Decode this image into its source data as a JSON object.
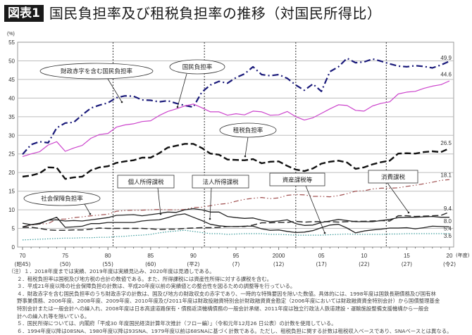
{
  "header": {
    "badge": "図表1",
    "title": "国民負担率及び租税負担率の推移（対国民所得比）"
  },
  "chart_data": {
    "type": "line",
    "title": "国民負担率及び租税負担率の推移（対国民所得比）",
    "ylabel": "(%)",
    "xlabel": "(年度)",
    "ylim": [
      0,
      55
    ],
    "yticks": [
      0,
      5,
      10,
      15,
      20,
      25,
      30,
      35,
      40,
      45,
      50,
      55
    ],
    "grid": true,
    "x": [
      1970,
      1971,
      1972,
      1973,
      1974,
      1975,
      1976,
      1977,
      1978,
      1979,
      1980,
      1981,
      1982,
      1983,
      1984,
      1985,
      1986,
      1987,
      1988,
      1989,
      1990,
      1991,
      1992,
      1993,
      1994,
      1995,
      1996,
      1997,
      1998,
      1999,
      2000,
      2001,
      2002,
      2003,
      2004,
      2005,
      2006,
      2007,
      2008,
      2009,
      2010,
      2011,
      2012,
      2013,
      2014,
      2015,
      2016,
      2017,
      2018,
      2019,
      2020
    ],
    "xtick_labels": [
      {
        "year": 1970,
        "label": "70",
        "sub": "(昭45)"
      },
      {
        "year": 1975,
        "label": "75",
        "sub": "(50)"
      },
      {
        "year": 1980,
        "label": "80",
        "sub": "(55)"
      },
      {
        "year": 1985,
        "label": "85",
        "sub": "(60)"
      },
      {
        "year": 1990,
        "label": "90",
        "sub": "(平2)"
      },
      {
        "year": 1995,
        "label": "95",
        "sub": "(7)"
      },
      {
        "year": 2000,
        "label": "2000",
        "sub": "(12)"
      },
      {
        "year": 2005,
        "label": "05",
        "sub": "(17)"
      },
      {
        "year": 2010,
        "label": "10",
        "sub": "(22)"
      },
      {
        "year": 2015,
        "label": "15",
        "sub": "(27)"
      },
      {
        "year": 2020,
        "label": "20",
        "sub": "(令2)"
      }
    ],
    "vlines": [
      1980.6,
      1991.3,
      2002.0,
      2012.6
    ],
    "series": [
      {
        "name": "財政赤字を含む国民負担率",
        "color": "#1a1a7a",
        "style": "dashdot",
        "width": 2.2,
        "values": [
          24.9,
          27.5,
          28.3,
          28.0,
          32.0,
          33.3,
          33.5,
          35.5,
          37.3,
          38.1,
          38.7,
          40.1,
          40.6,
          40.5,
          39.5,
          39.4,
          39.0,
          39.3,
          38.6,
          38.0,
          37.6,
          41.6,
          43.5,
          44.5,
          44.0,
          45.5,
          46.5,
          48.4,
          46.3,
          46.0,
          46.3,
          45.3,
          43.5,
          42.1,
          43.8,
          41.8,
          47.1,
          48.4,
          50.7,
          49.5,
          49.7,
          50.5,
          49.9,
          49.2,
          48.6,
          48.4,
          48.7,
          48.5,
          48.1,
          48.9,
          49.9
        ],
        "end_label": "49.9"
      },
      {
        "name": "国民負担率",
        "color": "#cc44cc",
        "style": "solid",
        "width": 1.2,
        "values": [
          24.3,
          25.0,
          25.6,
          27.4,
          28.3,
          25.7,
          26.6,
          27.3,
          29.2,
          30.2,
          30.5,
          32.2,
          32.8,
          33.1,
          33.7,
          33.9,
          35.3,
          36.4,
          37.1,
          37.9,
          38.4,
          37.4,
          36.3,
          36.3,
          35.4,
          35.8,
          35.5,
          36.5,
          36.3,
          35.4,
          35.5,
          36.4,
          35.0,
          34.1,
          34.7,
          35.9,
          37.1,
          38.2,
          38.0,
          36.7,
          36.5,
          37.9,
          38.6,
          39.0,
          41.1,
          41.6,
          41.8,
          42.6,
          43.2,
          43.6,
          44.6
        ],
        "end_label": "44.6"
      },
      {
        "name": "租税負担率",
        "color": "#111111",
        "style": "dash",
        "width": 2.4,
        "values": [
          18.9,
          19.2,
          19.8,
          21.4,
          21.3,
          18.3,
          18.7,
          18.9,
          20.6,
          21.4,
          21.7,
          22.6,
          23.0,
          23.3,
          24.0,
          24.0,
          25.2,
          26.7,
          27.2,
          27.7,
          27.7,
          26.6,
          25.1,
          24.8,
          23.5,
          23.4,
          23.3,
          23.6,
          22.5,
          22.9,
          23.0,
          21.8,
          20.8,
          20.4,
          21.1,
          22.4,
          22.9,
          23.2,
          22.7,
          21.0,
          21.4,
          22.2,
          22.8,
          23.2,
          25.1,
          25.2,
          25.1,
          25.5,
          25.7,
          25.5,
          26.5
        ],
        "end_label": "26.5"
      },
      {
        "name": "社会保障負担率",
        "color": "#a05050",
        "style": "dashdotdot",
        "width": 1.2,
        "values": [
          5.4,
          5.9,
          6.2,
          6.3,
          7.5,
          7.5,
          7.9,
          8.1,
          8.4,
          8.6,
          8.8,
          9.6,
          9.8,
          9.9,
          9.9,
          10.0,
          10.1,
          10.0,
          10.0,
          10.1,
          10.6,
          10.7,
          11.1,
          11.5,
          11.7,
          12.3,
          12.8,
          13.1,
          13.3,
          13.0,
          13.2,
          13.9,
          14.1,
          14.0,
          13.6,
          13.6,
          13.5,
          13.8,
          14.3,
          15.0,
          15.1,
          15.6,
          15.8,
          15.8,
          15.9,
          16.3,
          16.6,
          17.0,
          17.4,
          17.9,
          18.1
        ],
        "end_label": "18.1"
      },
      {
        "name": "個人所得課税",
        "color": "#222222",
        "style": "solid",
        "width": 1.3,
        "values": [
          5.4,
          6.0,
          6.4,
          7.2,
          7.3,
          7.0,
          7.1,
          7.0,
          7.3,
          7.6,
          7.9,
          8.5,
          8.6,
          8.7,
          8.4,
          8.7,
          9.0,
          9.4,
          9.3,
          10.0,
          10.3,
          10.0,
          9.4,
          9.4,
          8.2,
          7.9,
          7.7,
          7.8,
          7.2,
          6.8,
          7.0,
          7.3,
          6.3,
          5.8,
          5.9,
          6.6,
          7.0,
          7.4,
          7.1,
          6.8,
          6.8,
          6.8,
          7.1,
          7.4,
          7.9,
          8.0,
          8.0,
          8.1,
          8.2,
          8.0,
          8.0
        ],
        "end_label": "8.0"
      },
      {
        "name": "法人所得課税",
        "color": "#222222",
        "style": "solid",
        "width": 1.3,
        "values": [
          6.4,
          6.0,
          6.2,
          7.2,
          8.0,
          5.3,
          5.4,
          5.6,
          6.3,
          6.3,
          6.6,
          6.6,
          6.6,
          6.6,
          7.0,
          7.2,
          7.3,
          7.9,
          8.6,
          8.9,
          8.0,
          7.1,
          6.1,
          5.7,
          5.5,
          5.5,
          5.6,
          5.6,
          4.9,
          4.5,
          4.6,
          4.2,
          3.9,
          4.0,
          4.4,
          5.2,
          5.9,
          6.1,
          5.1,
          3.8,
          4.3,
          4.6,
          4.8,
          5.1,
          5.1,
          5.2,
          4.9,
          5.2,
          5.6,
          5.5,
          5.4
        ],
        "end_label": "5.4"
      },
      {
        "name": "消費課税",
        "color": "#222222",
        "style": "dash",
        "width": 1.4,
        "values": [
          5.3,
          5.3,
          5.0,
          4.6,
          4.5,
          4.5,
          4.6,
          4.6,
          4.8,
          5.1,
          5.0,
          5.0,
          5.0,
          5.0,
          5.0,
          4.9,
          4.7,
          4.8,
          4.8,
          5.0,
          5.1,
          5.2,
          5.2,
          5.3,
          5.5,
          5.5,
          5.5,
          5.9,
          6.5,
          6.5,
          6.6,
          6.6,
          6.9,
          6.7,
          6.8,
          6.8,
          6.8,
          6.7,
          6.8,
          6.9,
          6.9,
          7.0,
          7.1,
          7.0,
          8.4,
          8.4,
          8.2,
          8.3,
          8.4,
          8.5,
          9.4
        ],
        "end_label": "9.4"
      },
      {
        "name": "資産課税等",
        "color": "#3a9a9a",
        "style": "dot",
        "width": 1.2,
        "values": [
          1.9,
          2.0,
          2.1,
          2.2,
          2.3,
          2.4,
          2.4,
          2.5,
          2.5,
          2.6,
          2.6,
          2.8,
          2.9,
          3.1,
          3.2,
          3.4,
          3.8,
          4.1,
          4.3,
          4.5,
          4.2,
          3.9,
          3.6,
          3.6,
          3.4,
          3.5,
          3.6,
          3.6,
          3.6,
          3.4,
          3.4,
          3.3,
          3.2,
          3.2,
          3.2,
          3.2,
          3.3,
          3.4,
          3.5,
          3.4,
          3.4,
          3.4,
          3.4,
          3.5,
          3.5,
          3.6,
          3.6,
          3.6,
          3.6,
          3.6,
          3.6
        ],
        "end_label": "3.6"
      }
    ],
    "annotations": [
      {
        "text": "財政赤字を含む国民負担率",
        "shape": "ellipse"
      },
      {
        "text": "国民負担率",
        "shape": "ellipse"
      },
      {
        "text": "租税負担率",
        "shape": "ellipse"
      },
      {
        "text": "社会保障負担率",
        "shape": "ellipse"
      },
      {
        "text": "個人所得課税",
        "shape": "box"
      },
      {
        "text": "法人所得課税",
        "shape": "box"
      },
      {
        "text": "資産課税等",
        "shape": "box"
      },
      {
        "text": "消費課税",
        "shape": "box"
      }
    ]
  },
  "notes": [
    "（注）１．2018年度までは実績、2019年度は実績見込み、2020年度は見通しである。",
    "２．租税負担率は国税及び地方税の合計の数値である。また、所得課税には資産性所得に対する課税を含む。",
    "３．平成21年度以降の社会保障負担の計数は、平成20年度以前の実績値との整合性を図るための調整等を行っている。",
    "４．財政赤字を含む国民負担率のうち財政赤字の計数は、国及び地方の財政収支の赤字であり、一時的な特殊要因を除いた数値。具体的には、1998年度は国鉄長期債務及び国有林",
    "野事業債務、2006年度、2008年度、2009年度、2010年度及び2011年度は財政投融資特別会計財政融資資金勘定（2006年度においては財政融資資金特別会計）から国債整理基金",
    "特別会計または一般会計への繰入れ、2008年度は日本高速道路保有・債務返済機構債務の一般会計承継、2011年度は独立行政法人鉄道建設・運輸施設整備支援機構から一般会",
    "計への繰入れ等を除いている。",
    "５．国民所得については、内閣府「平成30 年度国民経済計算年次推計（フロー編）」（令和元年12月26 日公表）の計数を使用している。",
    "６．1994年度以降は08SNA、1980年度以降は93SNA、1979年度以前は68SNAに基づく計数である。ただし、租税負担に関する計数は租税収入ベースであり、SNAベースとは異なる。"
  ]
}
